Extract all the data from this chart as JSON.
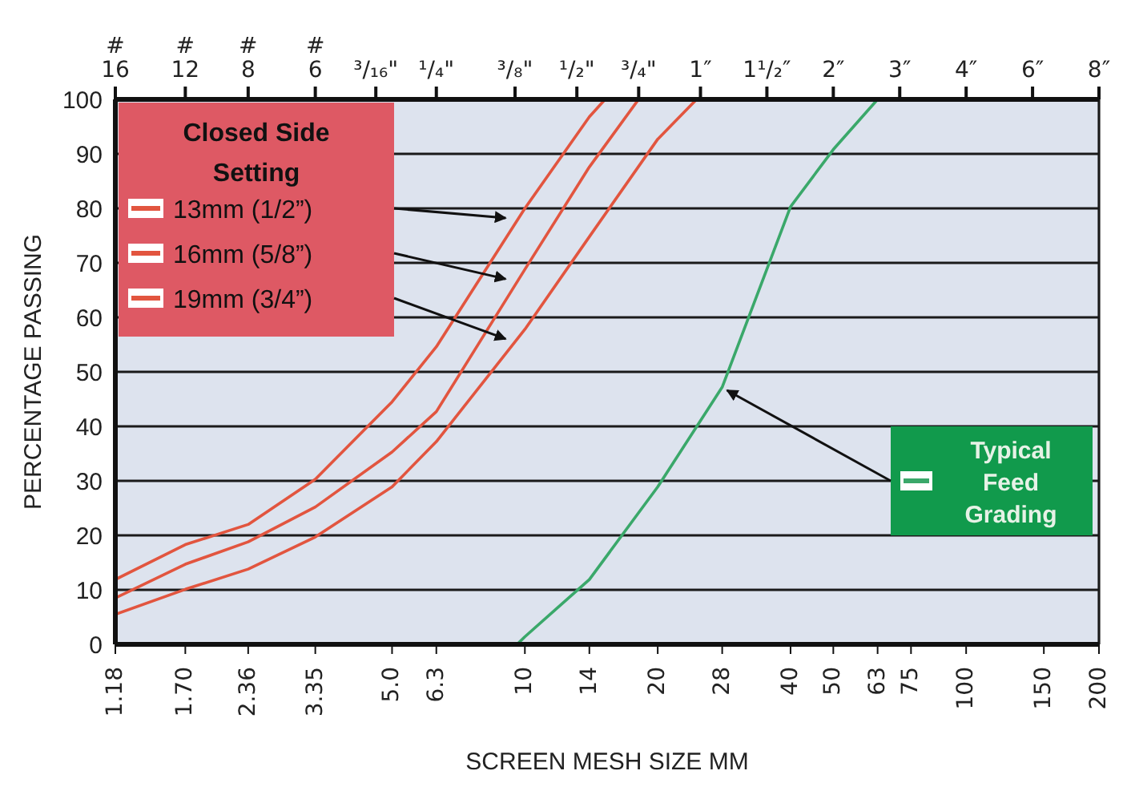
{
  "chart_data": {
    "type": "line",
    "xlabel": "SCREEN MESH SIZE MM",
    "ylabel": "PERCENTAGE PASSING",
    "legend_title": "Closed Side Setting",
    "log": "x",
    "xlim": [
      1.18,
      200
    ],
    "xticks": [
      1.18,
      {
        "value": 1.7,
        "label": "1.70"
      },
      2.36,
      3.35,
      {
        "value": 5,
        "label": "5.0"
      },
      6.3,
      10,
      14,
      20,
      28,
      40,
      50,
      63,
      75,
      100,
      150,
      200
    ],
    "annotations": [
      {
        "text": "# 16",
        "x": 1.18
      },
      {
        "text": "# 12",
        "x": 1.7
      },
      {
        "text": "# 8",
        "x": 2.36
      },
      {
        "text": "# 6",
        "x": 3.35
      },
      "³/₁₆\"",
      {
        "text": "¹/₄\"",
        "x": 6.3
      },
      {
        "text": "³/₈\"",
        "x": 9.5
      },
      "¹/₂\"",
      "³/₄\"",
      {
        "text": "1″",
        "x": 25
      },
      "1¹/₂″",
      {
        "text": "2″",
        "x": 50
      },
      "3″",
      "4″",
      "6″",
      "8″"
    ],
    "ylim": [
      0,
      100
    ],
    "yticks": [
      0,
      10,
      20,
      30,
      40,
      50,
      60,
      70,
      80,
      90,
      100
    ],
    "grid": true,
    "marker": "none",
    "legend": "top left",
    "series": [
      {
        "name": "13mm (1/2”)",
        "color": "#e2553f",
        "x": [
          1.18,
          1.7,
          2.36,
          3.35,
          5,
          6.3,
          10,
          14,
          15.2
        ],
        "values": [
          11.9,
          18.3,
          22,
          30.3,
          44.5,
          54.6,
          80,
          96.8,
          100
        ]
      },
      {
        "name": "16mm (5/8”)",
        "color": "#e2553f",
        "x": [
          1.18,
          1.7,
          2.36,
          3.35,
          5,
          6.3,
          10,
          14,
          18.1
        ],
        "values": [
          8.5,
          14.7,
          18.8,
          25.2,
          35.3,
          42.7,
          68.8,
          87.6,
          100
        ]
      },
      {
        "name": "19mm (3/4”)",
        "color": "#e2553f",
        "x": [
          1.18,
          1.7,
          2.36,
          3.35,
          5,
          6.3,
          10,
          14,
          20,
          24.5
        ],
        "values": [
          5.5,
          10.1,
          13.8,
          19.7,
          28.9,
          37.2,
          57.8,
          74.8,
          92.7,
          100
        ]
      },
      {
        "name": "Typical Feed Grading",
        "color": "#3aa86a",
        "x": [
          9.6,
          10,
          14,
          20,
          28,
          40,
          50,
          63
        ],
        "values": [
          0,
          1.4,
          11.9,
          28.9,
          47.2,
          80.3,
          90.8,
          100
        ]
      }
    ]
  }
}
